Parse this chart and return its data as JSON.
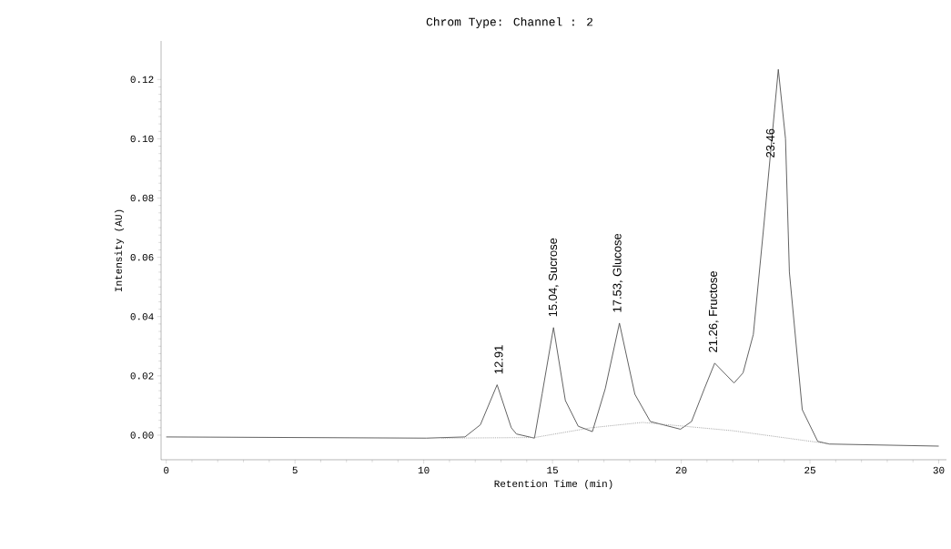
{
  "chart_data": {
    "type": "line",
    "title": "Chrom Type: Channel : 2",
    "xlabel": "Retention Time (min)",
    "ylabel": "Intensity (AU)",
    "xlim": [
      -0.2,
      30.3
    ],
    "ylim": [
      -0.0083,
      0.133
    ],
    "xticks": [
      0,
      5,
      10,
      15,
      20,
      25,
      30
    ],
    "yticks": [
      {
        "value": 0,
        "label": "0.00"
      },
      {
        "value": 0.02,
        "label": "0.02"
      },
      {
        "value": 0.04,
        "label": "0.04"
      },
      {
        "value": 0.06,
        "label": "0.06"
      },
      {
        "value": 0.08,
        "label": "0.08"
      },
      {
        "value": 0.1,
        "label": "0.10"
      },
      {
        "value": 0.12,
        "label": "0.12"
      }
    ],
    "marker": "none",
    "series": [
      {
        "color": "#505050",
        "line_style": "solid",
        "x": [
          0,
          10.1,
          11.6,
          12.2,
          12.85,
          13.4,
          13.6,
          14.3,
          14.6,
          15.04,
          15.5,
          16.0,
          16.55,
          17.05,
          17.6,
          18.2,
          18.8,
          19.97,
          20.4,
          20.9,
          21.3,
          22.05,
          22.4,
          22.8,
          23.2,
          23.77,
          24.05,
          24.2,
          24.7,
          25.3,
          25.75,
          30
        ],
        "values": [
          -0.0006,
          -0.001,
          -0.0006,
          0.0035,
          0.017,
          0.0025,
          0.0004,
          -0.001,
          0.014,
          0.0363,
          0.0117,
          0.003,
          0.0012,
          0.0157,
          0.0378,
          0.0138,
          0.0046,
          0.002,
          0.0046,
          0.0157,
          0.0243,
          0.0176,
          0.021,
          0.034,
          0.07,
          0.1234,
          0.1,
          0.055,
          0.0086,
          -0.0021,
          -0.003,
          -0.0037
        ]
      },
      {
        "color": "#9a9a9a",
        "line_style": "dotted",
        "x": [
          10.7,
          14.3,
          16.5,
          18.5,
          22.0,
          25.8
        ],
        "values": [
          -0.001,
          -0.0008,
          0.0025,
          0.0043,
          0.0015,
          -0.003
        ]
      }
    ],
    "annotations": [
      {
        "text": "12.91",
        "x": 12.91,
        "y": 0.017
      },
      {
        "text": "15.04, Sucrose",
        "x": 15.04,
        "y": 0.0363
      },
      {
        "text": "17.53, Glucose",
        "x": 17.53,
        "y": 0.0378
      },
      {
        "text": "21.26, Fructose",
        "x": 21.26,
        "y": 0.0243
      },
      {
        "text": "23.46",
        "x": 23.46,
        "y": 0.09
      }
    ]
  }
}
